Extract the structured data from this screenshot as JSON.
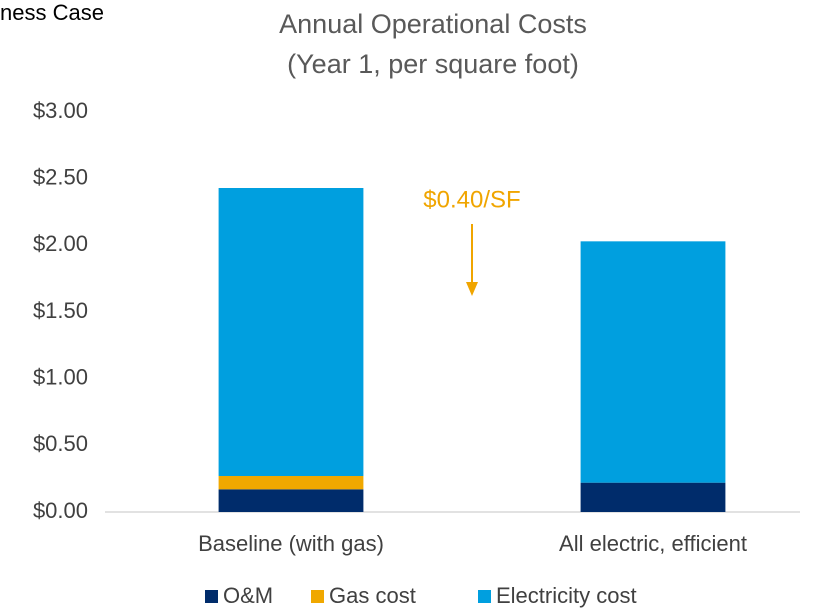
{
  "header_fragment": "ness Case",
  "chart_data": {
    "type": "bar",
    "stacked": true,
    "title": "Annual Operational Costs",
    "subtitle": "(Year 1, per square foot)",
    "categories": [
      "Baseline (with gas)",
      "All electric, efficient"
    ],
    "series": [
      {
        "name": "O&M",
        "color": "#002c6b",
        "values": [
          0.17,
          0.22
        ]
      },
      {
        "name": "Gas cost",
        "color": "#f0a800",
        "values": [
          0.1,
          0
        ]
      },
      {
        "name": "Electricity cost",
        "color": "#009fdf",
        "values": [
          2.16,
          1.81
        ]
      }
    ],
    "ylim": [
      0,
      3
    ],
    "yticks": [
      {
        "value": 0,
        "label": "$0.00"
      },
      {
        "value": 0.5,
        "label": "$0.50"
      },
      {
        "value": 1,
        "label": "$1.00"
      },
      {
        "value": 1.5,
        "label": "$1.50"
      },
      {
        "value": 2,
        "label": "$2.00"
      },
      {
        "value": 2.5,
        "label": "$2.50"
      },
      {
        "value": 3,
        "label": "$3.00"
      }
    ],
    "grid": false,
    "legend": "bottom",
    "annotations": [
      {
        "text": "$0.40/SF",
        "color": "#f0a500"
      }
    ]
  }
}
